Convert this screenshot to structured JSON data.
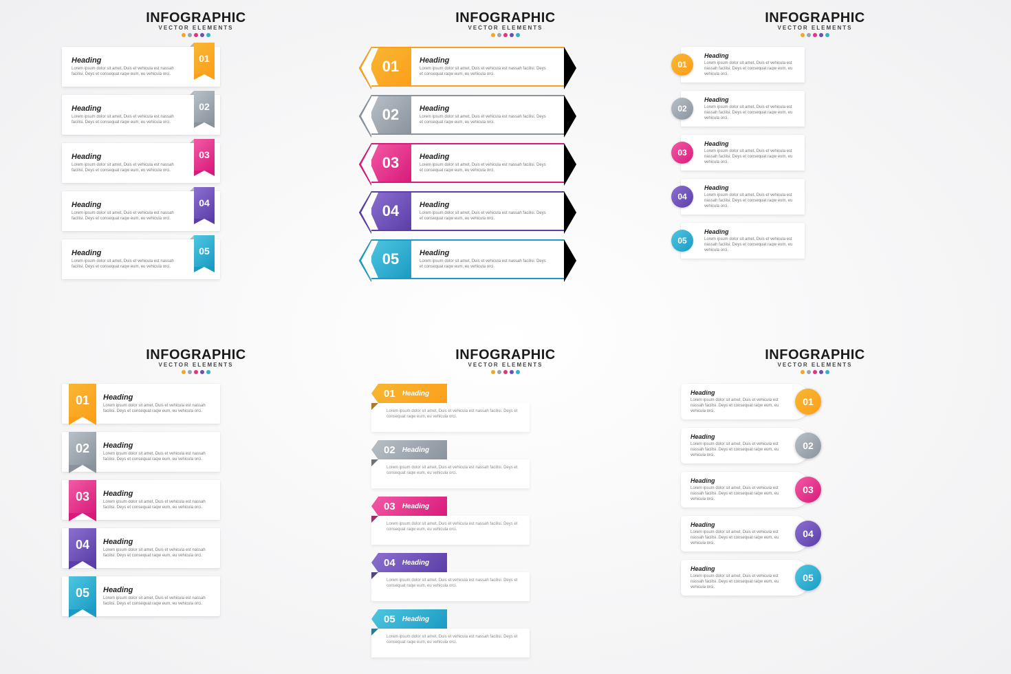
{
  "title": "INFOGRAPHIC",
  "subtitle": "VECTOR ELEMENTS",
  "heading_label": "Heading",
  "body_text": "Lorem ipsum dolor sit amet, Duis et vehicula est nassah facilisi. Deys et consequat raqw eum, eu vehicula orci.",
  "dot_colors": [
    "#f5a623",
    "#9aa4ad",
    "#e6317e",
    "#6d4fb3",
    "#34b0cf"
  ],
  "rows": [
    {
      "num": "01",
      "c1": "#f7b733",
      "c2": "#fc9f1b"
    },
    {
      "num": "02",
      "c1": "#b8c0c7",
      "c2": "#8a939c"
    },
    {
      "num": "03",
      "c1": "#f25aa5",
      "c2": "#d81b7a"
    },
    {
      "num": "04",
      "c1": "#8b6fd0",
      "c2": "#5b3fa8"
    },
    {
      "num": "05",
      "c1": "#4fc6e0",
      "c2": "#1b9bc4"
    }
  ],
  "background_color": "#f4f4f6",
  "card_bg": "#ffffff",
  "text_color": "#222222",
  "body_color": "#888888",
  "title_fontsize": 20,
  "subtitle_fontsize": 8,
  "panels": 6
}
